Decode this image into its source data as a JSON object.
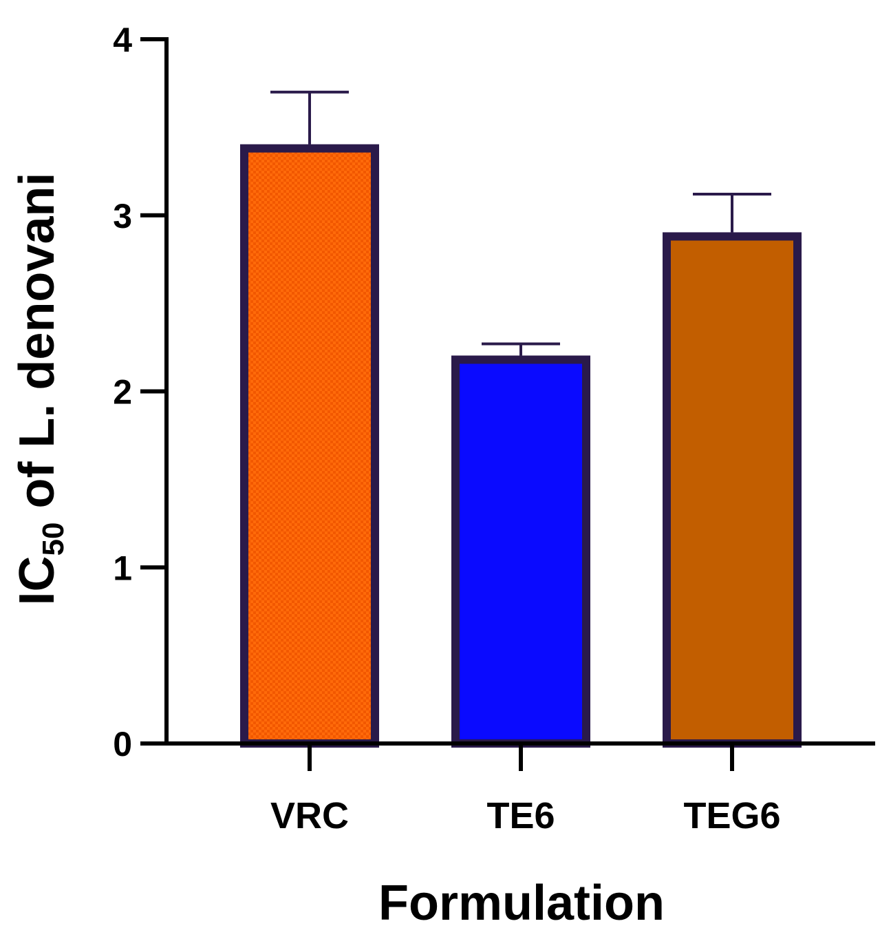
{
  "chart_data": {
    "type": "bar",
    "title": "",
    "xlabel": "Formulation",
    "ylabel_main": "IC",
    "ylabel_sub": "50",
    "ylabel_rest": " of L. denovani",
    "ylim": [
      0,
      4
    ],
    "yticks": [
      "0",
      "1",
      "2",
      "3",
      "4"
    ],
    "categories": [
      "VRC",
      "TE6",
      "TEG6"
    ],
    "values": [
      3.38,
      2.18,
      2.88
    ],
    "errors": [
      0.32,
      0.09,
      0.24
    ],
    "colors": [
      "#ff6a0a",
      "#0a0aff",
      "#c25e00"
    ],
    "patterns": [
      "checker",
      "solid",
      "solid"
    ]
  }
}
